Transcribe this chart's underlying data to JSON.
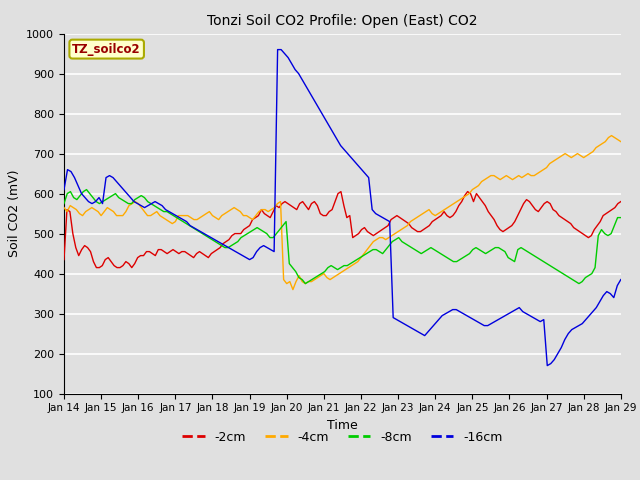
{
  "title": "Tonzi Soil CO2 Profile: Open (East) CO2",
  "xlabel": "Time",
  "ylabel": "Soil CO2 (mV)",
  "ylim": [
    100,
    1000
  ],
  "yticks": [
    100,
    200,
    300,
    400,
    500,
    600,
    700,
    800,
    900,
    1000
  ],
  "bg_color": "#e0e0e0",
  "grid_color": "#ffffff",
  "annotation_text": "TZ_soilco2",
  "annotation_bg": "#ffffcc",
  "annotation_border": "#aaaa00",
  "legend_entries": [
    "-2cm",
    "-4cm",
    "-8cm",
    "-16cm"
  ],
  "colors": {
    "-2cm": "#dd0000",
    "-4cm": "#ffaa00",
    "-8cm": "#00cc00",
    "-16cm": "#0000dd"
  },
  "x_tick_labels": [
    "Jan 14",
    "Jan 15",
    "Jan 16",
    "Jan 17",
    "Jan 18",
    "Jan 19",
    "Jan 20",
    "Jan 21",
    "Jan 22",
    "Jan 23",
    "Jan 24",
    "Jan 25",
    "Jan 26",
    "Jan 27",
    "Jan 28",
    "Jan 29"
  ],
  "data_2cm": [
    435,
    560,
    555,
    500,
    465,
    445,
    460,
    470,
    465,
    455,
    430,
    415,
    415,
    420,
    435,
    440,
    430,
    420,
    415,
    415,
    420,
    430,
    425,
    415,
    425,
    440,
    445,
    445,
    455,
    455,
    450,
    445,
    460,
    460,
    455,
    450,
    455,
    460,
    455,
    450,
    455,
    455,
    450,
    445,
    440,
    450,
    455,
    450,
    445,
    440,
    450,
    455,
    460,
    465,
    475,
    480,
    485,
    495,
    500,
    500,
    500,
    510,
    515,
    520,
    535,
    540,
    545,
    560,
    550,
    545,
    540,
    555,
    570,
    565,
    575,
    580,
    575,
    570,
    565,
    560,
    575,
    580,
    570,
    560,
    575,
    580,
    570,
    550,
    545,
    545,
    555,
    560,
    580,
    600,
    605,
    570,
    540,
    545,
    490,
    495,
    500,
    510,
    515,
    505,
    500,
    495,
    500,
    505,
    510,
    515,
    520,
    535,
    540,
    545,
    540,
    535,
    530,
    525,
    515,
    510,
    505,
    505,
    510,
    515,
    520,
    530,
    535,
    540,
    545,
    555,
    545,
    540,
    545,
    555,
    570,
    580,
    595,
    605,
    600,
    580,
    600,
    590,
    580,
    570,
    555,
    545,
    535,
    520,
    510,
    505,
    510,
    515,
    520,
    530,
    545,
    560,
    575,
    585,
    580,
    570,
    560,
    555,
    565,
    575,
    580,
    575,
    560,
    555,
    545,
    540,
    535,
    530,
    525,
    515,
    510,
    505,
    500,
    495,
    490,
    495,
    510,
    520,
    530,
    545,
    550,
    555,
    560,
    565,
    575,
    580
  ],
  "data_4cm": [
    565,
    555,
    570,
    565,
    560,
    550,
    545,
    555,
    560,
    565,
    560,
    555,
    545,
    555,
    565,
    560,
    555,
    545,
    545,
    545,
    555,
    570,
    575,
    580,
    575,
    565,
    555,
    545,
    545,
    550,
    555,
    545,
    540,
    535,
    530,
    525,
    530,
    545,
    545,
    545,
    545,
    540,
    535,
    535,
    540,
    545,
    550,
    555,
    545,
    540,
    535,
    545,
    550,
    555,
    560,
    565,
    560,
    555,
    545,
    545,
    540,
    535,
    545,
    555,
    560,
    560,
    555,
    560,
    565,
    575,
    580,
    385,
    375,
    380,
    360,
    380,
    395,
    380,
    375,
    380,
    380,
    385,
    390,
    395,
    400,
    390,
    385,
    390,
    395,
    400,
    405,
    410,
    415,
    420,
    425,
    430,
    440,
    450,
    460,
    470,
    480,
    485,
    490,
    490,
    485,
    490,
    495,
    500,
    505,
    510,
    515,
    520,
    530,
    535,
    540,
    545,
    550,
    555,
    560,
    550,
    545,
    550,
    555,
    560,
    565,
    570,
    575,
    580,
    585,
    590,
    595,
    600,
    610,
    615,
    620,
    630,
    635,
    640,
    645,
    645,
    640,
    635,
    640,
    645,
    640,
    635,
    640,
    645,
    640,
    645,
    650,
    645,
    645,
    650,
    655,
    660,
    665,
    675,
    680,
    685,
    690,
    695,
    700,
    695,
    690,
    695,
    700,
    695,
    690,
    695,
    700,
    705,
    715,
    720,
    725,
    730,
    740,
    745,
    740,
    735,
    730
  ],
  "data_8cm": [
    575,
    600,
    605,
    590,
    585,
    595,
    605,
    610,
    600,
    590,
    580,
    575,
    580,
    585,
    590,
    595,
    600,
    590,
    585,
    580,
    575,
    575,
    585,
    590,
    595,
    590,
    580,
    575,
    570,
    565,
    560,
    555,
    555,
    550,
    545,
    540,
    535,
    530,
    525,
    520,
    515,
    510,
    505,
    500,
    495,
    490,
    485,
    480,
    475,
    470,
    465,
    465,
    470,
    475,
    480,
    490,
    495,
    500,
    505,
    510,
    515,
    510,
    505,
    500,
    490,
    490,
    500,
    510,
    520,
    530,
    425,
    415,
    405,
    390,
    385,
    375,
    380,
    385,
    390,
    395,
    400,
    405,
    415,
    420,
    415,
    410,
    415,
    420,
    420,
    425,
    430,
    435,
    440,
    445,
    450,
    455,
    460,
    460,
    455,
    450,
    460,
    470,
    480,
    485,
    490,
    480,
    475,
    470,
    465,
    460,
    455,
    450,
    455,
    460,
    465,
    460,
    455,
    450,
    445,
    440,
    435,
    430,
    430,
    435,
    440,
    445,
    450,
    460,
    465,
    460,
    455,
    450,
    455,
    460,
    465,
    465,
    460,
    455,
    440,
    435,
    430,
    460,
    465,
    460,
    455,
    450,
    445,
    440,
    435,
    430,
    425,
    420,
    415,
    410,
    405,
    400,
    395,
    390,
    385,
    380,
    375,
    380,
    390,
    395,
    400,
    415,
    495,
    510,
    500,
    495,
    500,
    520,
    540,
    540
  ],
  "data_16cm": [
    610,
    660,
    655,
    640,
    620,
    600,
    590,
    580,
    575,
    580,
    590,
    575,
    640,
    645,
    640,
    630,
    620,
    610,
    600,
    590,
    580,
    575,
    570,
    565,
    570,
    575,
    580,
    575,
    570,
    560,
    555,
    550,
    545,
    540,
    535,
    530,
    520,
    515,
    510,
    505,
    500,
    495,
    490,
    485,
    480,
    475,
    470,
    465,
    460,
    455,
    450,
    445,
    440,
    435,
    440,
    455,
    465,
    470,
    465,
    460,
    455,
    960,
    960,
    950,
    940,
    925,
    910,
    900,
    885,
    870,
    855,
    840,
    825,
    810,
    795,
    780,
    765,
    750,
    735,
    720,
    710,
    700,
    690,
    680,
    670,
    660,
    650,
    640,
    560,
    550,
    545,
    540,
    535,
    530,
    290,
    285,
    280,
    275,
    270,
    265,
    260,
    255,
    250,
    245,
    255,
    265,
    275,
    285,
    295,
    300,
    305,
    310,
    310,
    305,
    300,
    295,
    290,
    285,
    280,
    275,
    270,
    270,
    275,
    280,
    285,
    290,
    295,
    300,
    305,
    310,
    315,
    305,
    300,
    295,
    290,
    285,
    280,
    285,
    170,
    175,
    185,
    200,
    215,
    235,
    250,
    260,
    265,
    270,
    275,
    285,
    295,
    305,
    315,
    330,
    345,
    355,
    350,
    340,
    370,
    385
  ]
}
